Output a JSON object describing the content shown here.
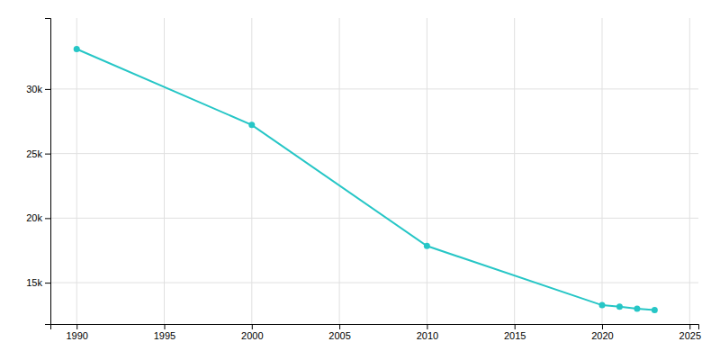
{
  "chart_data": {
    "type": "line",
    "x": [
      1990,
      2000,
      2010,
      2020,
      2021,
      2022,
      2023
    ],
    "values": [
      33096,
      27217,
      17843,
      13257,
      13147,
      12980,
      12876
    ],
    "color": "#26C6C6",
    "marker": "circle",
    "xlim": [
      1988.5,
      2025.5
    ],
    "xticks": [
      1990,
      1995,
      2000,
      2005,
      2010,
      2015,
      2020,
      2025
    ],
    "ylim": [
      11800,
      35500
    ],
    "yticks": [
      {
        "value": 15000,
        "label": "15k"
      },
      {
        "value": 20000,
        "label": "20k"
      },
      {
        "value": 25000,
        "label": "25k"
      },
      {
        "value": 30000,
        "label": "30k"
      }
    ],
    "grid": true
  }
}
